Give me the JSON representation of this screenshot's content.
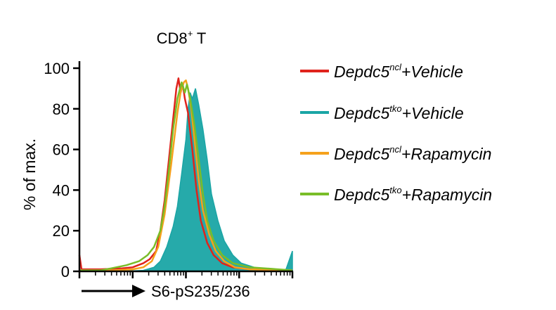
{
  "chart_data": {
    "type": "line",
    "title_main": "CD8",
    "title_sup": "+",
    "title_rest": " T",
    "ylabel": "% of max.",
    "xlabel": "S6-pS235/236",
    "x_scale": "log",
    "xlim": [
      0,
      1
    ],
    "ylim": [
      0,
      100
    ],
    "yticks": [
      0,
      20,
      40,
      60,
      80,
      100
    ],
    "grid": false,
    "legend_position": "right",
    "series": [
      {
        "legend_base": "Depdc5",
        "legend_sup": "ncl",
        "legend_suffix": "+Vehicle",
        "color": "#e0231c",
        "fill": false,
        "points": [
          [
            0.0,
            8
          ],
          [
            0.01,
            1
          ],
          [
            0.1,
            1
          ],
          [
            0.2,
            1.5
          ],
          [
            0.25,
            2
          ],
          [
            0.3,
            4
          ],
          [
            0.33,
            6
          ],
          [
            0.36,
            10
          ],
          [
            0.38,
            20
          ],
          [
            0.4,
            35
          ],
          [
            0.42,
            55
          ],
          [
            0.44,
            75
          ],
          [
            0.455,
            90
          ],
          [
            0.465,
            95
          ],
          [
            0.475,
            88
          ],
          [
            0.485,
            92
          ],
          [
            0.495,
            85
          ],
          [
            0.51,
            78
          ],
          [
            0.53,
            60
          ],
          [
            0.55,
            40
          ],
          [
            0.57,
            25
          ],
          [
            0.6,
            14
          ],
          [
            0.63,
            8
          ],
          [
            0.67,
            4
          ],
          [
            0.72,
            2
          ],
          [
            0.8,
            1
          ],
          [
            1.0,
            0.5
          ]
        ]
      },
      {
        "legend_base": "Depdc5",
        "legend_sup": "tko",
        "legend_suffix": "+Vehicle",
        "color": "#1aa5a5",
        "fill": true,
        "points": [
          [
            0.0,
            0
          ],
          [
            0.2,
            0
          ],
          [
            0.3,
            0.5
          ],
          [
            0.35,
            2
          ],
          [
            0.38,
            5
          ],
          [
            0.41,
            12
          ],
          [
            0.44,
            22
          ],
          [
            0.46,
            32
          ],
          [
            0.48,
            48
          ],
          [
            0.5,
            65
          ],
          [
            0.51,
            80
          ],
          [
            0.52,
            88
          ],
          [
            0.53,
            85
          ],
          [
            0.545,
            90
          ],
          [
            0.56,
            82
          ],
          [
            0.58,
            70
          ],
          [
            0.6,
            55
          ],
          [
            0.62,
            38
          ],
          [
            0.65,
            25
          ],
          [
            0.68,
            15
          ],
          [
            0.72,
            8
          ],
          [
            0.76,
            4
          ],
          [
            0.82,
            2
          ],
          [
            0.9,
            0.5
          ],
          [
            0.97,
            1
          ],
          [
            1.0,
            10
          ]
        ]
      },
      {
        "legend_base": "Depdc5",
        "legend_sup": "ncl",
        "legend_suffix": "+Rapamycin",
        "color": "#f5a11c",
        "fill": false,
        "points": [
          [
            0.0,
            0.5
          ],
          [
            0.15,
            0.5
          ],
          [
            0.25,
            1
          ],
          [
            0.3,
            2
          ],
          [
            0.34,
            5
          ],
          [
            0.37,
            12
          ],
          [
            0.4,
            28
          ],
          [
            0.43,
            52
          ],
          [
            0.46,
            78
          ],
          [
            0.475,
            88
          ],
          [
            0.49,
            93
          ],
          [
            0.5,
            94
          ],
          [
            0.51,
            90
          ],
          [
            0.525,
            80
          ],
          [
            0.54,
            65
          ],
          [
            0.56,
            45
          ],
          [
            0.58,
            30
          ],
          [
            0.61,
            18
          ],
          [
            0.64,
            10
          ],
          [
            0.68,
            5
          ],
          [
            0.73,
            2
          ],
          [
            0.8,
            1
          ],
          [
            1.0,
            0.5
          ]
        ]
      },
      {
        "legend_base": "Depdc5",
        "legend_sup": "tko",
        "legend_suffix": "+Rapamycin",
        "color": "#79bd28",
        "fill": false,
        "points": [
          [
            0.0,
            0.5
          ],
          [
            0.1,
            0.5
          ],
          [
            0.15,
            1.5
          ],
          [
            0.22,
            3
          ],
          [
            0.28,
            5
          ],
          [
            0.32,
            8
          ],
          [
            0.35,
            12
          ],
          [
            0.38,
            20
          ],
          [
            0.4,
            32
          ],
          [
            0.42,
            50
          ],
          [
            0.44,
            70
          ],
          [
            0.46,
            85
          ],
          [
            0.48,
            93
          ],
          [
            0.495,
            88
          ],
          [
            0.505,
            92
          ],
          [
            0.52,
            85
          ],
          [
            0.54,
            72
          ],
          [
            0.56,
            55
          ],
          [
            0.58,
            38
          ],
          [
            0.6,
            25
          ],
          [
            0.63,
            15
          ],
          [
            0.67,
            8
          ],
          [
            0.72,
            4
          ],
          [
            0.8,
            2
          ],
          [
            1.0,
            0.5
          ]
        ]
      }
    ]
  }
}
